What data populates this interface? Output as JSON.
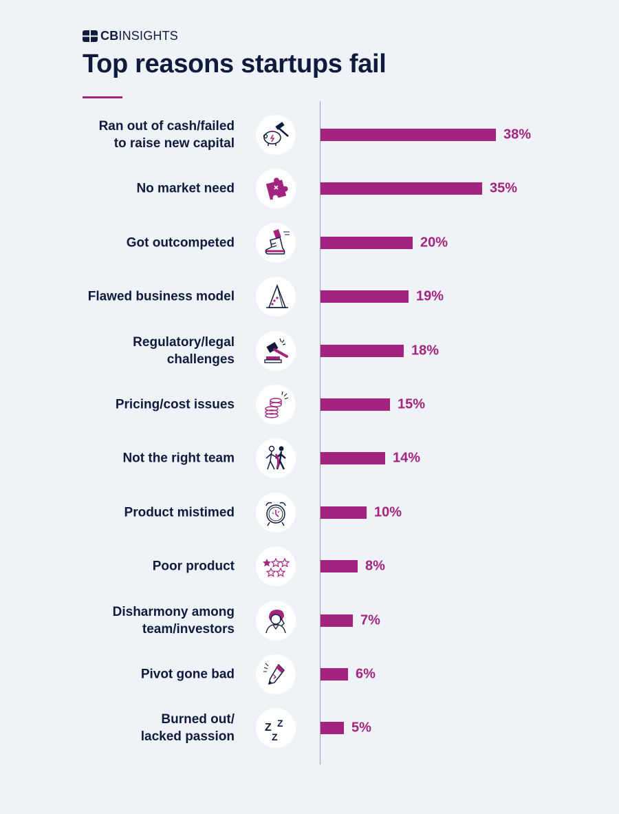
{
  "brand": {
    "logo_bold": "CB",
    "logo_light": "INSIGHTS",
    "accent": "#a3237f",
    "text_color": "#0e1b3d",
    "background": "#eff3f7"
  },
  "chart_data": {
    "type": "bar",
    "orientation": "horizontal",
    "title": "Top reasons startups fail",
    "xlim": [
      0,
      38
    ],
    "categories": [
      "Ran out of cash/failed\nto raise new capital",
      "No market need",
      "Got outcompeted",
      "Flawed business model",
      "Regulatory/legal\nchallenges",
      "Pricing/cost issues",
      "Not the right team",
      "Product mistimed",
      "Poor product",
      "Disharmony among\nteam/investors",
      "Pivot gone bad",
      "Burned out/\nlacked passion"
    ],
    "values": [
      38,
      35,
      20,
      19,
      18,
      15,
      14,
      10,
      8,
      7,
      6,
      5
    ],
    "value_labels": [
      "38%",
      "35%",
      "20%",
      "19%",
      "18%",
      "15%",
      "14%",
      "10%",
      "8%",
      "7%",
      "6%",
      "5%"
    ],
    "icons": [
      "piggy-bank-hammer-icon",
      "puzzle-piece-icon",
      "sneaker-icon",
      "house-of-cards-icon",
      "gavel-icon",
      "coin-stack-icon",
      "team-figures-icon",
      "alarm-clock-icon",
      "star-rating-icon",
      "stressed-person-icon",
      "broken-pencil-icon",
      "sleep-zzz-icon"
    ],
    "grid": false,
    "legend": "none"
  }
}
